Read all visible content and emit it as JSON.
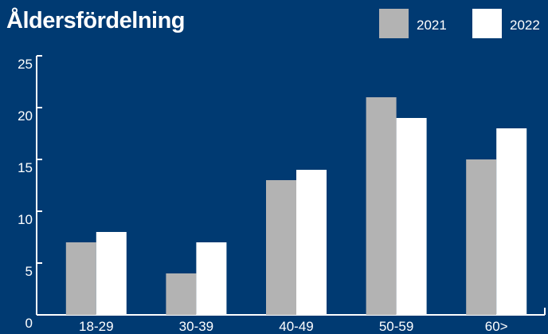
{
  "chart_data": {
    "type": "bar",
    "title": "Åldersfördelning",
    "xlabel": "",
    "ylabel": "",
    "categories": [
      "18-29",
      "30-39",
      "40-49",
      "50-59",
      "60>"
    ],
    "series": [
      {
        "name": "2021",
        "values": [
          7,
          4,
          13,
          21,
          15
        ]
      },
      {
        "name": "2022",
        "values": [
          8,
          7,
          14,
          19,
          18
        ]
      }
    ],
    "ylim": [
      0,
      25
    ],
    "yticks": [
      0,
      5,
      10,
      15,
      20,
      25
    ],
    "grid": false,
    "legend": "top-right",
    "colors": {
      "background": "#003a72",
      "axis": "#ffffff",
      "text": "#ffffff",
      "series": [
        "#b3b3b3",
        "#ffffff"
      ]
    }
  }
}
